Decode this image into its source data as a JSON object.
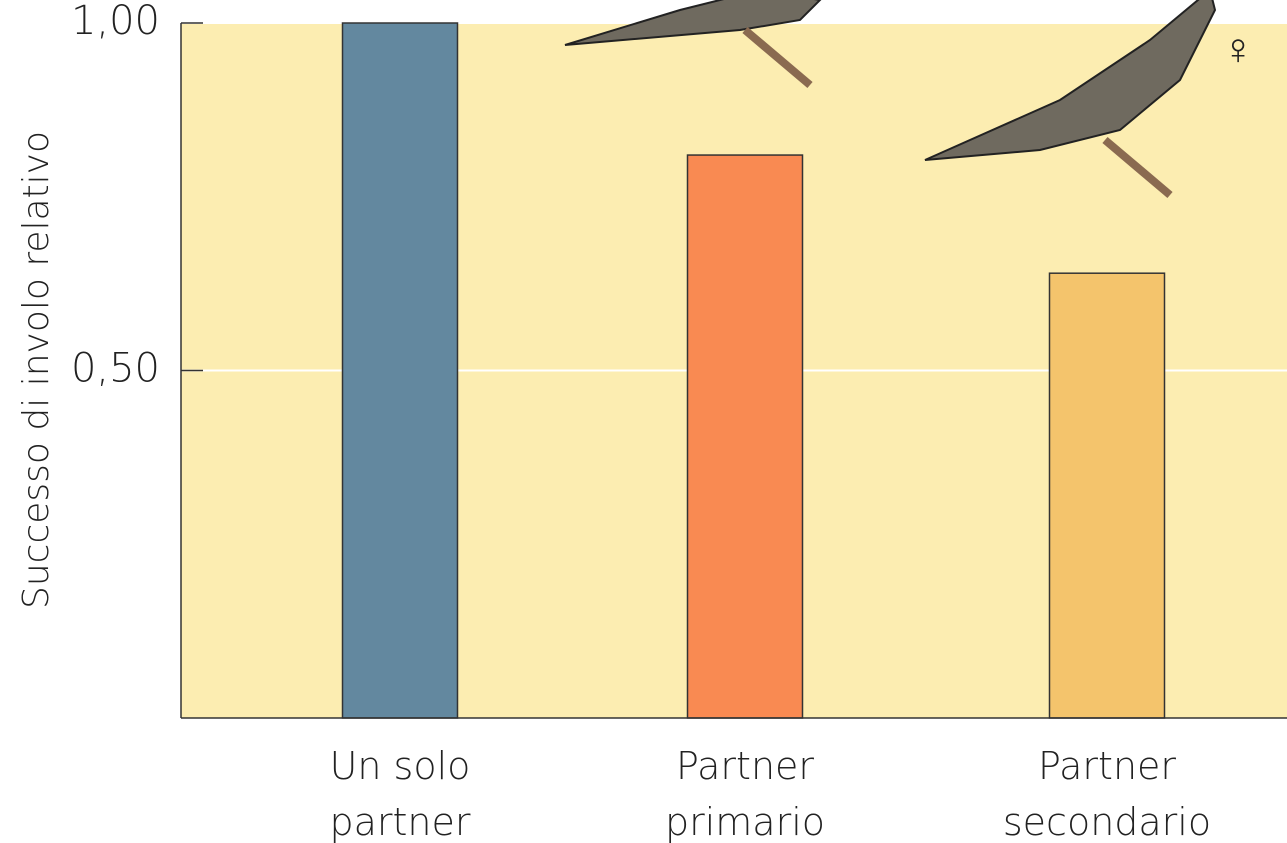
{
  "chart_data": {
    "type": "bar",
    "y_label": "Successo di involo relativo",
    "annotation": "♀",
    "categories": [
      "Un solo partner",
      "Partner primario",
      "Partner secondario"
    ],
    "values": [
      1.0,
      0.81,
      0.64
    ],
    "colors": [
      "#63889f",
      "#f98a52",
      "#f4c46c"
    ],
    "ylim": [
      0,
      1
    ],
    "yticks": [
      {
        "value": 0.5,
        "label": "0,50"
      },
      {
        "value": 1,
        "label": "1,00"
      }
    ],
    "grid": true,
    "background": "#fcedb1"
  }
}
